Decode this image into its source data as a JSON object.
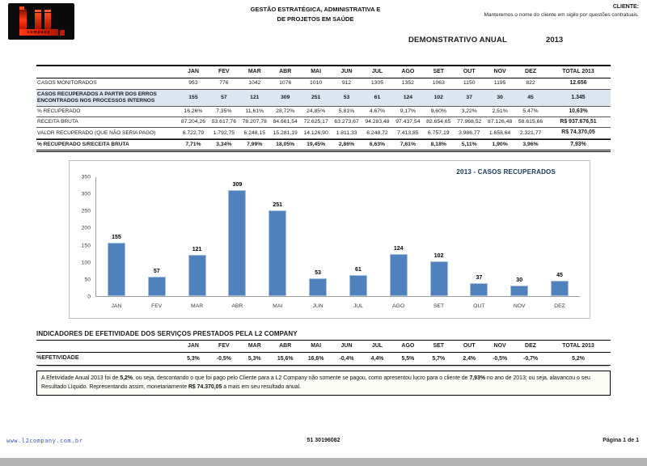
{
  "header": {
    "logo_company_text": "company",
    "title_line1": "GESTÃO ESTRATÉGICA, ADMINISTRATIVA E",
    "title_line2": "DE PROJETOS EM SAÚDE",
    "client_label": "CLIENTE:",
    "client_note": "Manteremos o nome do cliente em sigilo por questões contratuais.",
    "report_title": "DEMONSTRATIVO ANUAL",
    "report_year": "2013"
  },
  "main_table": {
    "months": [
      "JAN",
      "FEV",
      "MAR",
      "ABR",
      "MAI",
      "JUN",
      "JUL",
      "AGO",
      "SET",
      "OUT",
      "NOV",
      "DEZ"
    ],
    "total_header": "TOTAL 2013",
    "rows": [
      {
        "label": "CASOS MONITORADOS",
        "values": [
          "953",
          "776",
          "1042",
          "1076",
          "1010",
          "912",
          "1305",
          "1352",
          "1063",
          "1150",
          "1195",
          "822"
        ],
        "total": "12.656",
        "highlight": false,
        "bold": false,
        "final": false
      },
      {
        "label": "CASOS RECUPERADOS A PARTIR DOS ERROS ENCONTRADOS NOS PROCESSOS INTERNOS",
        "values": [
          "155",
          "57",
          "121",
          "309",
          "251",
          "53",
          "61",
          "124",
          "102",
          "37",
          "30",
          "45"
        ],
        "total": "1.345",
        "highlight": true,
        "bold": true,
        "final": false
      },
      {
        "label": "% RECUPERADO",
        "values": [
          "16,26%",
          "7,35%",
          "11,61%",
          "28,72%",
          "24,85%",
          "5,81%",
          "4,67%",
          "9,17%",
          "9,60%",
          "3,22%",
          "2,51%",
          "5,47%"
        ],
        "total": "10,63%",
        "highlight": false,
        "bold": false,
        "final": false
      },
      {
        "label": "RECEITA BRUTA",
        "values": [
          "87.204,26",
          "53.617,76",
          "78.207,78",
          "84.661,54",
          "72.625,17",
          "63.273,67",
          "94.283,48",
          "97.437,54",
          "82.654,65",
          "77.968,52",
          "87.126,48",
          "58.615,66"
        ],
        "total": "R$ 937.676,51",
        "highlight": false,
        "bold": false,
        "final": false
      },
      {
        "label": "VALOR RECUPERADO (Que não seria pago)",
        "values": [
          "6.722,79",
          "1.792,75",
          "6.248,15",
          "15.281,19",
          "14.126,90",
          "1.811,33",
          "6.248,72",
          "7.413,85",
          "6.757,19",
          "3.986,77",
          "1.658,64",
          "2.321,77"
        ],
        "total": "R$ 74.370,05",
        "highlight": false,
        "bold": false,
        "final": false
      },
      {
        "label": "% RECUPERADO S/Receita Bruta",
        "values": [
          "7,71%",
          "3,34%",
          "7,99%",
          "18,05%",
          "19,45%",
          "2,86%",
          "6,63%",
          "7,61%",
          "8,18%",
          "5,11%",
          "1,90%",
          "3,96%"
        ],
        "total": "7,93%",
        "highlight": false,
        "bold": true,
        "final": true
      }
    ]
  },
  "chart_data": {
    "type": "bar",
    "title": "2013 - CASOS RECUPERADOS",
    "categories": [
      "JAN",
      "FEV",
      "MAR",
      "ABR",
      "MAI",
      "JUN",
      "JUL",
      "AGO",
      "SET",
      "OUT",
      "NOV",
      "DEZ"
    ],
    "values": [
      155,
      57,
      121,
      309,
      251,
      53,
      61,
      124,
      102,
      37,
      30,
      45
    ],
    "xlabel": "",
    "ylabel": "",
    "ylim": [
      0,
      350
    ],
    "yticks": [
      0,
      50,
      100,
      150,
      200,
      250,
      300,
      350
    ],
    "grid": false,
    "legend": "none",
    "bar_color": "#4F81BD"
  },
  "indicators": {
    "heading": "INDICADORES DE EFETIVIDADE DOS SERVIÇOS PRESTADOS PELA L2 COMPANY",
    "row_label": "%EFETIVIDADE",
    "values": [
      "5,3%",
      "-0,5%",
      "5,3%",
      "15,6%",
      "16,6%",
      "-0,4%",
      "4,4%",
      "5,5%",
      "5,7%",
      "2,4%",
      "-0,5%",
      "-0,7%"
    ],
    "total": "5,2%"
  },
  "note": {
    "parts": [
      {
        "text": "A Efetividade Anual 2013 foi de ",
        "bold": false
      },
      {
        "text": "5,2%",
        "bold": true
      },
      {
        "text": ", ou seja, descontando o que foi pago pelo Cliente para a L2 Company não somente se pagou, como apresentou lucro para o cliente de ",
        "bold": false
      },
      {
        "text": "7,93%",
        "bold": true
      },
      {
        "text": " no ano de 2013; ou seja, alavancou o seu Resultado Líquido. Representando assim, monetariamente ",
        "bold": false
      },
      {
        "text": "R$ 74.370,05",
        "bold": true
      },
      {
        "text": " a mais em seu resultado anual.",
        "bold": false
      }
    ]
  },
  "footer": {
    "website": "www.l2company.com.br",
    "phone": "51 30196082",
    "page": "Página 1 de 1"
  }
}
